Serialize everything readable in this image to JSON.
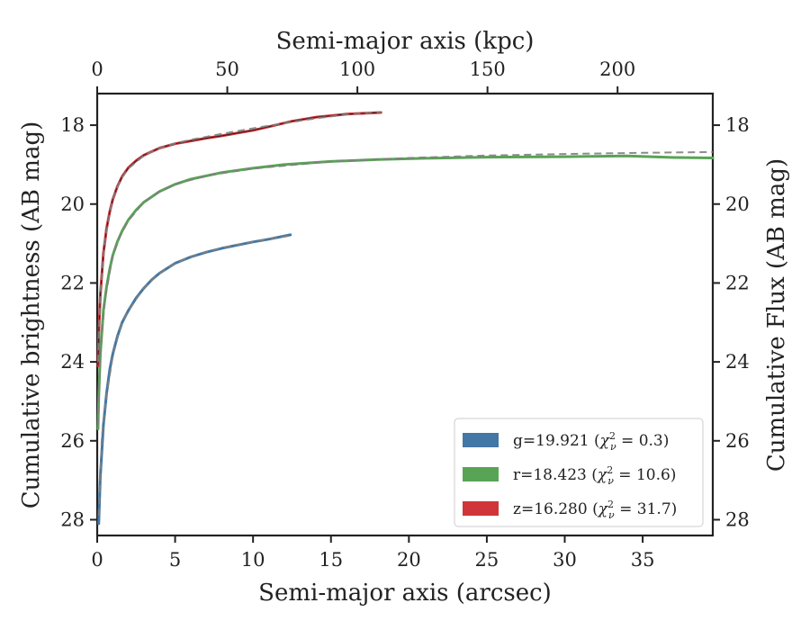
{
  "chart_data": {
    "type": "line",
    "xlabel": "Semi-major axis (arcsec)",
    "xlabel_top": "Semi-major axis (kpc)",
    "ylabel": "Cumulative brightness (AB mag)",
    "ylabel_right": "Cumulative Flux (AB mag)",
    "xlim": [
      0,
      39.5
    ],
    "xlim_top": [
      0,
      236.6
    ],
    "ylim": [
      28.4,
      17.2
    ],
    "y_inverted": true,
    "x_ticks": [
      0,
      5,
      10,
      15,
      20,
      25,
      30,
      35
    ],
    "x_ticks_top": [
      0,
      50,
      100,
      150,
      200
    ],
    "y_ticks": [
      18,
      20,
      22,
      24,
      26,
      28
    ],
    "grid": false,
    "legend_position": "lower-right",
    "series": [
      {
        "name": "g=19.921 (χ²ᵥ = 0.3)",
        "legend": {
          "band": "g",
          "mag": "19.921",
          "chi2": "0.3"
        },
        "color": "#4277a6",
        "x": [
          0.1,
          0.2,
          0.4,
          0.6,
          0.8,
          1.0,
          1.3,
          1.6,
          2.0,
          2.5,
          3.0,
          3.5,
          4.0,
          5.0,
          6.0,
          7.0,
          8.0,
          9.0,
          10.0,
          11.0,
          12.4
        ],
        "y": [
          28.1,
          26.9,
          25.6,
          24.8,
          24.2,
          23.8,
          23.35,
          23.0,
          22.7,
          22.38,
          22.13,
          21.92,
          21.75,
          21.5,
          21.34,
          21.22,
          21.12,
          21.04,
          20.96,
          20.89,
          20.78
        ]
      },
      {
        "name": "r=18.423 (χ²ᵥ = 10.6)",
        "legend": {
          "band": "r",
          "mag": "18.423",
          "chi2": "10.6"
        },
        "color": "#58a455",
        "x": [
          0.05,
          0.1,
          0.2,
          0.4,
          0.6,
          0.8,
          1.0,
          1.3,
          1.6,
          2.0,
          2.5,
          3.0,
          4.0,
          5.0,
          6.0,
          8.0,
          10.0,
          12.0,
          15.0,
          18.0,
          21.0,
          25.0,
          30.0,
          34.0,
          37.0,
          39.5
        ],
        "y": [
          25.7,
          24.9,
          23.8,
          22.7,
          22.1,
          21.65,
          21.3,
          20.95,
          20.68,
          20.4,
          20.15,
          19.95,
          19.68,
          19.5,
          19.37,
          19.2,
          19.09,
          19.0,
          18.92,
          18.87,
          18.84,
          18.81,
          18.8,
          18.78,
          18.82,
          18.83
        ]
      },
      {
        "name": "z=16.280 (χ²ᵥ = 31.7)",
        "legend": {
          "band": "z",
          "mag": "16.280",
          "chi2": "31.7"
        },
        "color": "#d03539",
        "x": [
          0.05,
          0.1,
          0.2,
          0.4,
          0.6,
          0.8,
          1.0,
          1.3,
          1.6,
          2.0,
          2.5,
          3.0,
          4.0,
          5.0,
          6.0,
          7.0,
          8.0,
          9.0,
          10.0,
          11.0,
          12.5,
          14.0,
          16.0,
          18.2
        ],
        "y": [
          24.1,
          23.3,
          22.3,
          21.25,
          20.62,
          20.2,
          19.88,
          19.55,
          19.3,
          19.08,
          18.9,
          18.76,
          18.58,
          18.47,
          18.4,
          18.33,
          18.27,
          18.2,
          18.13,
          18.04,
          17.9,
          17.8,
          17.72,
          17.68
        ]
      }
    ],
    "model_fits": {
      "style": "dashed",
      "color": "#808080",
      "curves": [
        {
          "x": [
            0.1,
            0.3,
            0.6,
            1.0,
            1.5,
            2.0,
            3.0,
            4.0,
            5.0,
            6.0,
            7.0,
            8.0,
            10.0,
            12.4
          ],
          "y": [
            27.9,
            25.9,
            24.85,
            23.85,
            23.1,
            22.7,
            22.12,
            21.75,
            21.5,
            21.33,
            21.21,
            21.11,
            20.95,
            20.8
          ]
        },
        {
          "x": [
            0.05,
            0.2,
            0.5,
            1.0,
            1.5,
            2.0,
            3.0,
            4.0,
            5.0,
            7.0,
            10.0,
            15.0,
            20.0,
            25.0,
            30.0,
            35.0,
            39.5
          ],
          "y": [
            25.6,
            23.75,
            22.4,
            21.3,
            20.78,
            20.42,
            19.95,
            19.68,
            19.5,
            19.28,
            19.1,
            18.92,
            18.83,
            18.77,
            18.73,
            18.7,
            18.68
          ]
        },
        {
          "x": [
            0.05,
            0.2,
            0.5,
            1.0,
            1.5,
            2.0,
            3.0,
            4.0,
            5.0,
            6.0,
            8.0,
            10.0,
            12.0,
            14.0,
            16.0,
            18.2
          ],
          "y": [
            24.0,
            22.25,
            20.9,
            19.85,
            19.38,
            19.1,
            18.77,
            18.58,
            18.46,
            18.37,
            18.22,
            18.08,
            17.95,
            17.83,
            17.73,
            17.67
          ]
        }
      ]
    }
  }
}
